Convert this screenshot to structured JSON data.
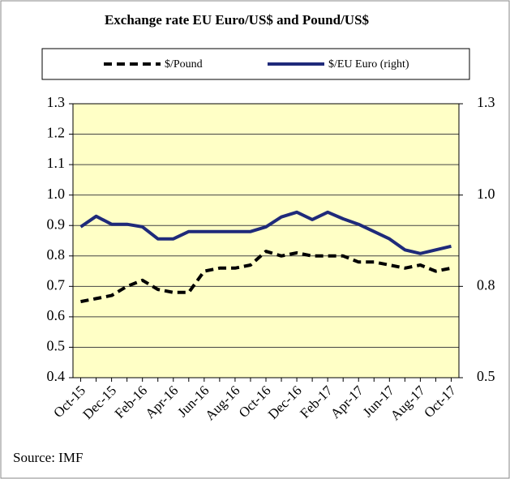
{
  "chart_data": {
    "type": "line",
    "title": "Exchange rate EU Euro/US$ and Pound/US$",
    "source": "Source: IMF",
    "categories": [
      "Oct-15",
      null,
      "Dec-15",
      null,
      "Feb-16",
      null,
      "Apr-16",
      null,
      "Jun-16",
      null,
      "Aug-16",
      null,
      "Oct-16",
      null,
      "Dec-16",
      null,
      "Feb-17",
      null,
      "Apr-17",
      null,
      "Jun-17",
      null,
      "Aug-17",
      null,
      "Oct-17"
    ],
    "series": [
      {
        "name": "$/Pound",
        "color": "#000000",
        "style": "dashed",
        "axis": "y",
        "values": [
          0.65,
          0.66,
          0.67,
          0.7,
          0.72,
          0.69,
          0.68,
          0.68,
          0.75,
          0.76,
          0.76,
          0.77,
          0.815,
          0.8,
          0.81,
          0.8,
          0.8,
          0.8,
          0.78,
          0.78,
          0.77,
          0.76,
          0.77,
          0.75,
          0.76
        ]
      },
      {
        "name": "$/EU Euro (right)",
        "color": "#1f2a7a",
        "style": "solid",
        "axis": "y2",
        "values": [
          0.913,
          0.942,
          0.92,
          0.92,
          0.913,
          0.88,
          0.88,
          0.9,
          0.9,
          0.9,
          0.9,
          0.9,
          0.913,
          0.94,
          0.953,
          0.933,
          0.953,
          0.935,
          0.92,
          0.9,
          0.88,
          0.85,
          0.84,
          0.85,
          0.86
        ]
      }
    ],
    "ylim": [
      0.4,
      1.3
    ],
    "yticks": [
      0.4,
      0.5,
      0.6,
      0.7,
      {
        "value": 0.8,
        "label": "0.8"
      },
      0.9,
      {
        "value": 1.0,
        "label": "1.0"
      },
      1.1,
      1.2,
      1.3
    ],
    "y2lim": [
      0.5,
      1.25
    ],
    "y2ticks": [
      0.5,
      {
        "value": 0.75,
        "label": "0.8"
      },
      {
        "value": 1.0,
        "label": "1.0"
      },
      {
        "value": 1.25,
        "label": "1.3"
      }
    ],
    "grid": true,
    "legend": "top",
    "plot_background": "#ffffc6"
  }
}
